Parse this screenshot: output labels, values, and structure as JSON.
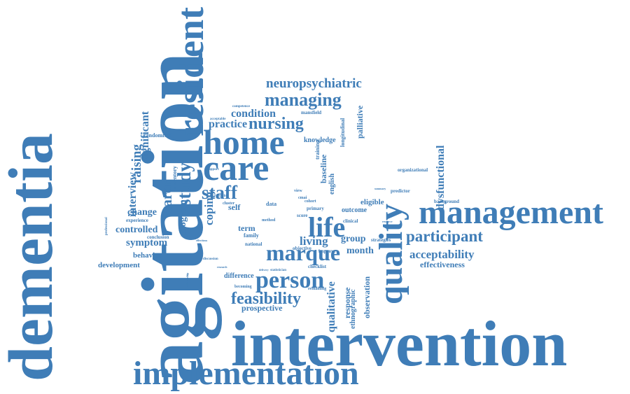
{
  "palette": {
    "word_color": "#3f7db7",
    "background": "#ffffff"
  },
  "words": [
    {
      "text": "agitation",
      "vertical": true
    },
    {
      "text": "dementia",
      "vertical": true
    },
    {
      "text": "intervention",
      "vertical": false
    },
    {
      "text": "management",
      "vertical": false
    },
    {
      "text": "implementation",
      "vertical": false
    },
    {
      "text": "quality",
      "vertical": true
    },
    {
      "text": "resident",
      "vertical": true
    },
    {
      "text": "home",
      "vertical": false
    },
    {
      "text": "care",
      "vertical": false
    },
    {
      "text": "marque",
      "vertical": false
    },
    {
      "text": "person",
      "vertical": false
    },
    {
      "text": "life",
      "vertical": false
    },
    {
      "text": "staff",
      "vertical": false
    },
    {
      "text": "nursing",
      "vertical": false
    },
    {
      "text": "managing",
      "vertical": false
    },
    {
      "text": "participant",
      "vertical": false
    },
    {
      "text": "feasibility",
      "vertical": false
    },
    {
      "text": "study",
      "vertical": true
    },
    {
      "text": "neuropsychiatric",
      "vertical": false
    },
    {
      "text": "acceptability",
      "vertical": false
    },
    {
      "text": "effectiveness",
      "vertical": false
    },
    {
      "text": "dysfunctional",
      "vertical": true
    },
    {
      "text": "qualitative",
      "vertical": true
    },
    {
      "text": "carer",
      "vertical": true
    },
    {
      "text": "raising",
      "vertical": true
    },
    {
      "text": "symptom",
      "vertical": false
    },
    {
      "text": "controlled",
      "vertical": false
    },
    {
      "text": "change",
      "vertical": false
    },
    {
      "text": "interview",
      "vertical": true
    },
    {
      "text": "significant",
      "vertical": true
    },
    {
      "text": "practice",
      "vertical": false
    },
    {
      "text": "condition",
      "vertical": false
    },
    {
      "text": "living",
      "vertical": false
    },
    {
      "text": "group",
      "vertical": false
    },
    {
      "text": "month",
      "vertical": false
    },
    {
      "text": "term",
      "vertical": false
    },
    {
      "text": "self",
      "vertical": false
    },
    {
      "text": "coping",
      "vertical": true
    },
    {
      "text": "program",
      "vertical": true
    },
    {
      "text": "behavior",
      "vertical": false
    },
    {
      "text": "development",
      "vertical": false
    },
    {
      "text": "prospective",
      "vertical": false
    },
    {
      "text": "difference",
      "vertical": false
    },
    {
      "text": "observation",
      "vertical": true
    },
    {
      "text": "response",
      "vertical": true
    },
    {
      "text": "ethnographic",
      "vertical": true
    },
    {
      "text": "palliative",
      "vertical": true
    },
    {
      "text": "background",
      "vertical": false
    },
    {
      "text": "organizational",
      "vertical": false
    },
    {
      "text": "predictor",
      "vertical": false
    },
    {
      "text": "eligible",
      "vertical": false
    },
    {
      "text": "outcome",
      "vertical": false
    },
    {
      "text": "baseline",
      "vertical": true
    },
    {
      "text": "english",
      "vertical": true
    },
    {
      "text": "longitudinal",
      "vertical": true
    },
    {
      "text": "knowledge",
      "vertical": false
    },
    {
      "text": "training",
      "vertical": true
    },
    {
      "text": "mansfield",
      "vertical": false
    },
    {
      "text": "competence",
      "vertical": false
    },
    {
      "text": "acceptable",
      "vertical": false
    },
    {
      "text": "randomised",
      "vertical": false
    },
    {
      "text": "inventory",
      "vertical": true
    },
    {
      "text": "experience",
      "vertical": false
    },
    {
      "text": "conclusion",
      "vertical": false
    },
    {
      "text": "professional",
      "vertical": true
    },
    {
      "text": "clinical",
      "vertical": false
    },
    {
      "text": "primary",
      "vertical": false
    },
    {
      "text": "score",
      "vertical": false
    },
    {
      "text": "data",
      "vertical": false
    },
    {
      "text": "family",
      "vertical": false
    },
    {
      "text": "national",
      "vertical": false
    },
    {
      "text": "objective",
      "vertical": false
    },
    {
      "text": "improve",
      "vertical": false
    },
    {
      "text": "strategies",
      "vertical": false
    },
    {
      "text": "checklist",
      "vertical": false
    },
    {
      "text": "remaining",
      "vertical": false
    },
    {
      "text": "becoming",
      "vertical": false
    },
    {
      "text": "cohort",
      "vertical": false
    },
    {
      "text": "view",
      "vertical": false
    },
    {
      "text": "cmai",
      "vertical": false
    },
    {
      "text": "method",
      "vertical": false
    },
    {
      "text": "feasible",
      "vertical": false
    },
    {
      "text": "cluster",
      "vertical": false
    },
    {
      "text": "support",
      "vertical": false
    },
    {
      "text": "effectious",
      "vertical": false
    },
    {
      "text": "discussion",
      "vertical": false
    },
    {
      "text": "research",
      "vertical": false
    },
    {
      "text": "statistician",
      "vertical": false
    },
    {
      "text": "delivery",
      "vertical": false
    },
    {
      "text": "relationship",
      "vertical": true
    },
    {
      "text": "resource",
      "vertical": false
    },
    {
      "text": "summary",
      "vertical": false
    }
  ]
}
